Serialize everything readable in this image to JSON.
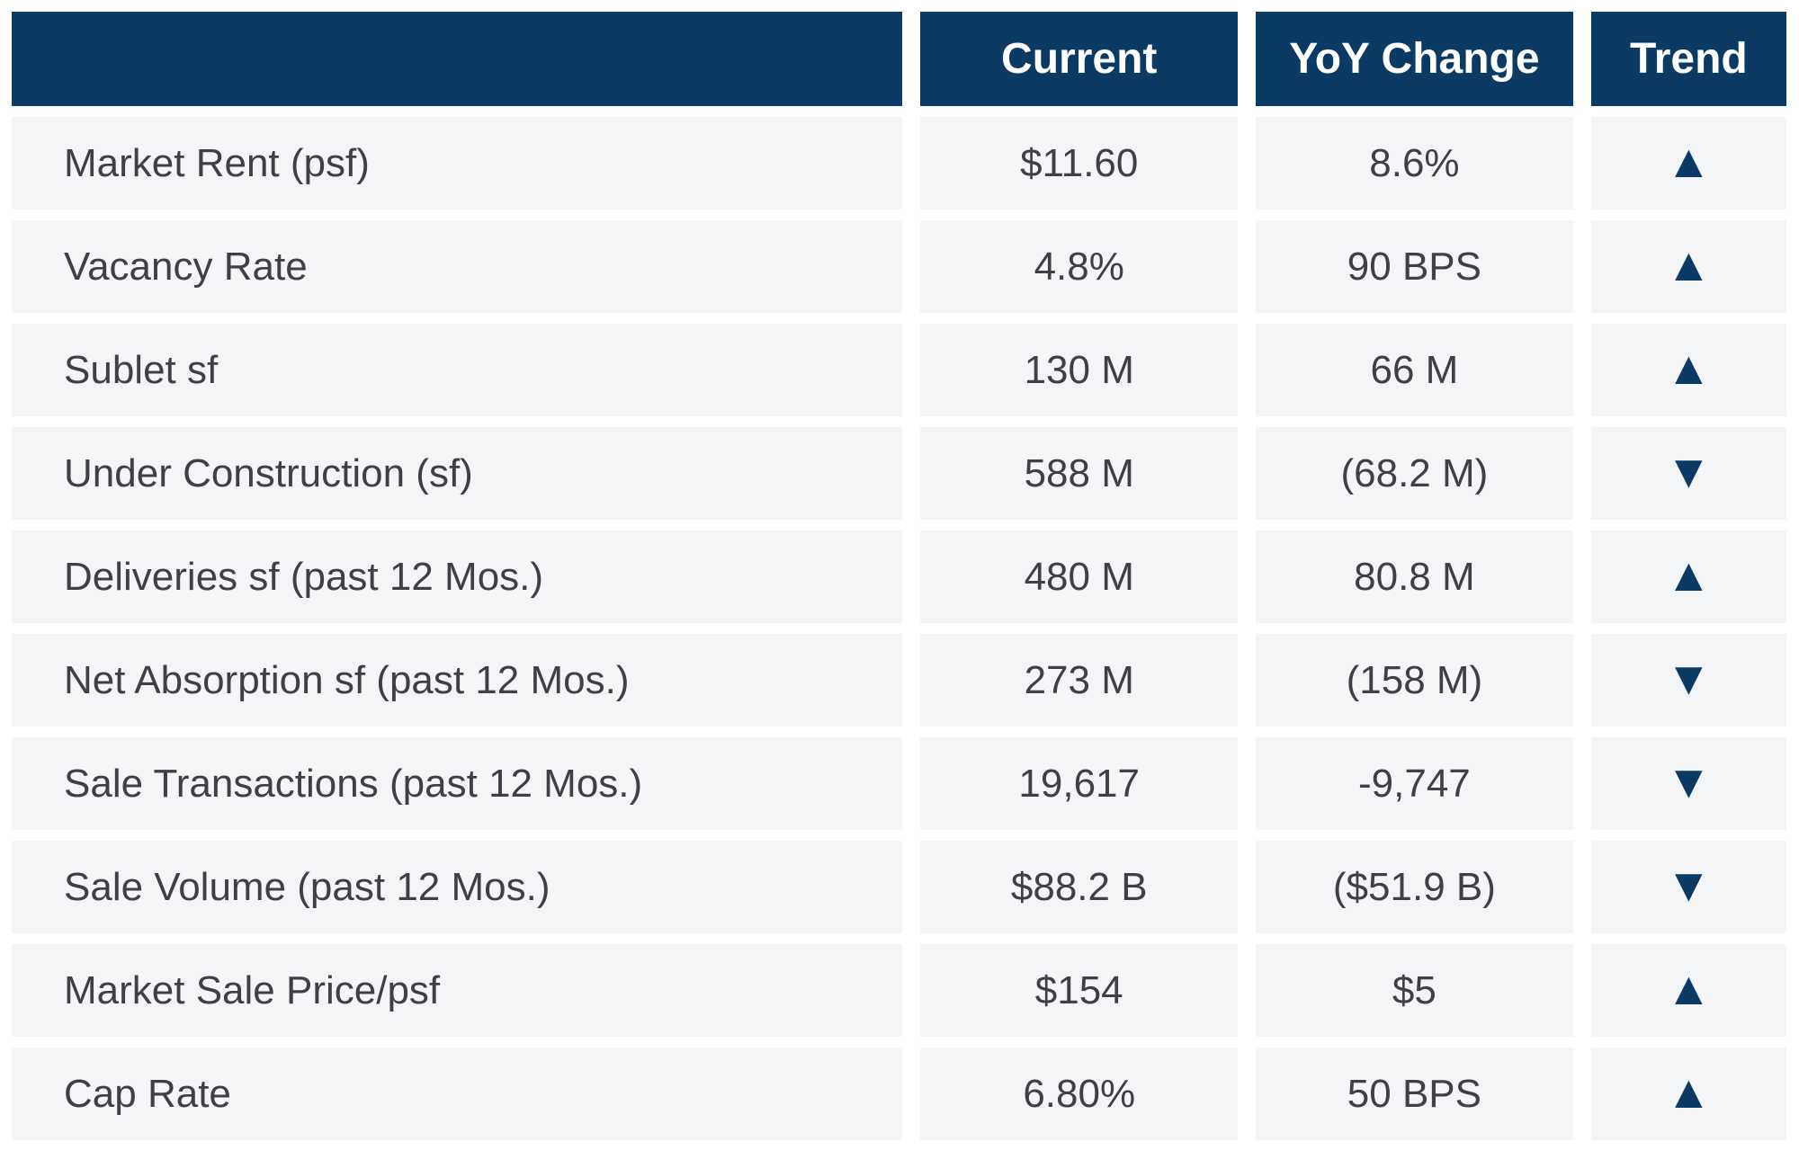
{
  "chart_data": {
    "type": "table",
    "columns": [
      "",
      "Current",
      "YoY Change",
      "Trend"
    ],
    "rows": [
      {
        "label": "Market Rent (psf)",
        "current": "$11.60",
        "yoy": "8.6%",
        "trend": "up"
      },
      {
        "label": "Vacancy Rate",
        "current": "4.8%",
        "yoy": "90 BPS",
        "trend": "up"
      },
      {
        "label": "Sublet sf",
        "current": "130 M",
        "yoy": "66 M",
        "trend": "up"
      },
      {
        "label": "Under Construction (sf)",
        "current": "588 M",
        "yoy": "(68.2 M)",
        "trend": "down"
      },
      {
        "label": "Deliveries sf (past 12 Mos.)",
        "current": "480 M",
        "yoy": "80.8 M",
        "trend": "up"
      },
      {
        "label": "Net Absorption sf (past 12 Mos.)",
        "current": "273 M",
        "yoy": "(158 M)",
        "trend": "down"
      },
      {
        "label": "Sale Transactions (past 12 Mos.)",
        "current": "19,617",
        "yoy": "-9,747",
        "trend": "down"
      },
      {
        "label": "Sale Volume (past 12 Mos.)",
        "current": "$88.2 B",
        "yoy": "($51.9 B)",
        "trend": "down"
      },
      {
        "label": "Market Sale Price/psf",
        "current": "$154",
        "yoy": "$5",
        "trend": "up"
      },
      {
        "label": "Cap Rate",
        "current": "6.80%",
        "yoy": "50 BPS",
        "trend": "up"
      }
    ]
  },
  "icons": {
    "up": "▲",
    "down": "▼"
  },
  "colors": {
    "header_bg": "#0b3a64",
    "row_bg": "#f4f5f7",
    "trend": "#0b3a64",
    "body_text": "#3f4043",
    "header_text": "#ffffff",
    "page_bg": "#ffffff"
  }
}
